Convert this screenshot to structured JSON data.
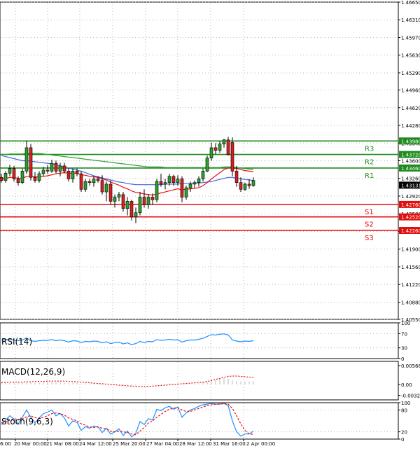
{
  "chart_data": [
    {
      "type": "candlestick",
      "panel": "main",
      "ylim": [
        1.4055,
        1.4665
      ],
      "y_ticks": [
        "1.46650",
        "1.46310",
        "1.45970",
        "1.45630",
        "1.45290",
        "1.44960",
        "1.44620",
        "1.44280",
        "1.43940",
        "1.43600",
        "1.43260",
        "1.42920",
        "1.42580",
        "1.42240",
        "1.41900",
        "1.41560",
        "1.41220",
        "1.40880",
        "1.40550"
      ],
      "current_price": {
        "value": 1.4313,
        "label": "1.43131"
      },
      "levels": [
        {
          "name": "R3",
          "value": 1.4398,
          "label": "1.43980",
          "kind": "resistance"
        },
        {
          "name": "R2",
          "value": 1.4372,
          "label": "1.43720",
          "kind": "resistance"
        },
        {
          "name": "R1",
          "value": 1.4346,
          "label": "1.43460",
          "kind": "resistance"
        },
        {
          "name": "S1",
          "value": 1.4276,
          "label": "1.42760",
          "kind": "support"
        },
        {
          "name": "S2",
          "value": 1.4252,
          "label": "1.42520",
          "kind": "support"
        },
        {
          "name": "S3",
          "value": 1.4226,
          "label": "1.42260",
          "kind": "support"
        }
      ],
      "candles": [
        [
          1.4328,
          1.4335,
          1.4318,
          1.4322
        ],
        [
          1.4322,
          1.434,
          1.4318,
          1.4336
        ],
        [
          1.4336,
          1.4352,
          1.433,
          1.4345
        ],
        [
          1.4345,
          1.435,
          1.432,
          1.4325
        ],
        [
          1.4325,
          1.433,
          1.4312,
          1.4318
        ],
        [
          1.4318,
          1.4345,
          1.4315,
          1.434
        ],
        [
          1.434,
          1.4398,
          1.4335,
          1.4385
        ],
        [
          1.4385,
          1.4392,
          1.4322,
          1.4328
        ],
        [
          1.4328,
          1.4338,
          1.4318,
          1.4322
        ],
        [
          1.4322,
          1.434,
          1.4318,
          1.4335
        ],
        [
          1.4335,
          1.4348,
          1.433,
          1.4342
        ],
        [
          1.4342,
          1.4352,
          1.4335,
          1.434
        ],
        [
          1.434,
          1.4362,
          1.4337,
          1.4355
        ],
        [
          1.4355,
          1.436,
          1.4336,
          1.434
        ],
        [
          1.434,
          1.4356,
          1.433,
          1.435
        ],
        [
          1.435,
          1.4356,
          1.4336,
          1.434
        ],
        [
          1.434,
          1.4346,
          1.432,
          1.4325
        ],
        [
          1.4325,
          1.4345,
          1.4318,
          1.434
        ],
        [
          1.434,
          1.4345,
          1.433,
          1.4335
        ],
        [
          1.4335,
          1.434,
          1.43,
          1.4305
        ],
        [
          1.4305,
          1.4325,
          1.43,
          1.432
        ],
        [
          1.432,
          1.4325,
          1.4312,
          1.4318
        ],
        [
          1.4318,
          1.433,
          1.431,
          1.4325
        ],
        [
          1.4325,
          1.433,
          1.4318,
          1.4322
        ],
        [
          1.4322,
          1.4332,
          1.4295,
          1.43
        ],
        [
          1.43,
          1.432,
          1.4282,
          1.4315
        ],
        [
          1.4315,
          1.4322,
          1.4275,
          1.4282
        ],
        [
          1.4282,
          1.4295,
          1.427,
          1.429
        ],
        [
          1.429,
          1.43,
          1.4282,
          1.4295
        ],
        [
          1.4295,
          1.43,
          1.4262,
          1.4268
        ],
        [
          1.4268,
          1.429,
          1.4255,
          1.4282
        ],
        [
          1.4282,
          1.4285,
          1.4245,
          1.4252
        ],
        [
          1.4252,
          1.427,
          1.424,
          1.426
        ],
        [
          1.426,
          1.43,
          1.4255,
          1.429
        ],
        [
          1.429,
          1.4305,
          1.427,
          1.4275
        ],
        [
          1.4275,
          1.4296,
          1.4268,
          1.429
        ],
        [
          1.429,
          1.4297,
          1.4275,
          1.4285
        ],
        [
          1.4285,
          1.4325,
          1.428,
          1.432
        ],
        [
          1.432,
          1.4335,
          1.431,
          1.4315
        ],
        [
          1.4315,
          1.4325,
          1.4305,
          1.4318
        ],
        [
          1.4318,
          1.4335,
          1.4312,
          1.433
        ],
        [
          1.433,
          1.4333,
          1.4312,
          1.4318
        ],
        [
          1.4318,
          1.4332,
          1.4312,
          1.4325
        ],
        [
          1.4325,
          1.433,
          1.428,
          1.429
        ],
        [
          1.429,
          1.4312,
          1.4285,
          1.4308
        ],
        [
          1.4308,
          1.432,
          1.43,
          1.4315
        ],
        [
          1.4315,
          1.4322,
          1.4308,
          1.4318
        ],
        [
          1.4318,
          1.433,
          1.431,
          1.4325
        ],
        [
          1.4325,
          1.4345,
          1.432,
          1.434
        ],
        [
          1.434,
          1.437,
          1.4338,
          1.4365
        ],
        [
          1.4365,
          1.4395,
          1.436,
          1.4385
        ],
        [
          1.4385,
          1.4394,
          1.4372,
          1.438
        ],
        [
          1.438,
          1.4398,
          1.4375,
          1.4392
        ],
        [
          1.4392,
          1.4402,
          1.4385,
          1.44
        ],
        [
          1.44,
          1.4406,
          1.437,
          1.4372
        ],
        [
          1.4395,
          1.4405,
          1.433,
          1.434
        ],
        [
          1.434,
          1.435,
          1.431,
          1.4318
        ],
        [
          1.4318,
          1.4328,
          1.43,
          1.4305
        ],
        [
          1.4305,
          1.4318,
          1.4302,
          1.4315
        ],
        [
          1.4315,
          1.4325,
          1.4306,
          1.4312
        ],
        [
          1.4312,
          1.4328,
          1.431,
          1.4322
        ]
      ],
      "x_labels": [
        "6:00",
        "20 Mar 00:00",
        "21 Mar 08:00",
        "24 Mar 12:00",
        "25 Mar 20:00",
        "27 Mar 04:00",
        "28 Mar 12:00",
        "31 Mar 16:00",
        "2 Apr 00:00"
      ],
      "moving_averages": [
        {
          "color": "#2ca02c",
          "values": [
            1.4372,
            1.4372,
            1.4373,
            1.4373,
            1.4373,
            1.4373,
            1.4374,
            1.4374,
            1.4374,
            1.4374,
            1.4373,
            1.4372,
            1.4371,
            1.437,
            1.4369,
            1.4368,
            1.4367,
            1.4366,
            1.4365,
            1.4364,
            1.4363,
            1.4362,
            1.4361,
            1.436,
            1.4359,
            1.4358,
            1.4357,
            1.4356,
            1.4355,
            1.4354,
            1.4353,
            1.4352,
            1.4351,
            1.435,
            1.4349,
            1.4348,
            1.4348,
            1.4348,
            1.4348,
            1.4347,
            1.4347,
            1.4347,
            1.4347,
            1.4347,
            1.4347,
            1.4347,
            1.4347,
            1.4347,
            1.4347,
            1.4347,
            1.4347,
            1.4347,
            1.4347,
            1.4348,
            1.4348,
            1.4348,
            1.4347,
            1.4346,
            1.4345,
            1.4344,
            1.4343
          ]
        },
        {
          "color": "#4169e1",
          "values": [
            1.437,
            1.4368,
            1.4366,
            1.4364,
            1.4362,
            1.436,
            1.436,
            1.4359,
            1.4358,
            1.4357,
            1.4356,
            1.4355,
            1.4354,
            1.4352,
            1.435,
            1.4348,
            1.4346,
            1.4344,
            1.4342,
            1.434,
            1.4337,
            1.4334,
            1.4331,
            1.4329,
            1.4327,
            1.4325,
            1.4323,
            1.4321,
            1.4319,
            1.4318,
            1.4316,
            1.4315,
            1.4314,
            1.4314,
            1.4314,
            1.4314,
            1.4314,
            1.4314,
            1.4314,
            1.4315,
            1.4315,
            1.4315,
            1.4315,
            1.4316,
            1.4316,
            1.4316,
            1.4317,
            1.4317,
            1.4318,
            1.4319,
            1.432,
            1.4322,
            1.4324,
            1.4326,
            1.4328,
            1.4328,
            1.4326,
            1.4325,
            1.4324,
            1.4323,
            1.4322
          ]
        },
        {
          "color": "#e81010",
          "values": [
            1.4325,
            1.4326,
            1.4328,
            1.4328,
            1.4326,
            1.4326,
            1.433,
            1.433,
            1.4329,
            1.4329,
            1.433,
            1.4331,
            1.4333,
            1.4335,
            1.4336,
            1.4337,
            1.4336,
            1.4336,
            1.4336,
            1.4333,
            1.4332,
            1.433,
            1.4329,
            1.4328,
            1.4325,
            1.4323,
            1.4319,
            1.4316,
            1.4313,
            1.4309,
            1.4306,
            1.4302,
            1.4299,
            1.4298,
            1.4296,
            1.4295,
            1.4294,
            1.4296,
            1.4298,
            1.43,
            1.4302,
            1.4304,
            1.4306,
            1.4304,
            1.4305,
            1.4306,
            1.4307,
            1.4308,
            1.4312,
            1.4318,
            1.4325,
            1.4331,
            1.4337,
            1.4343,
            1.4346,
            1.4346,
            1.4345,
            1.4343,
            1.4341,
            1.434,
            1.4339
          ]
        }
      ]
    },
    {
      "type": "line",
      "panel": "rsi",
      "title": "RSI(14)",
      "ylim": [
        0,
        100
      ],
      "y_ticks": [
        "100",
        "70",
        "30",
        "0"
      ],
      "series": [
        {
          "color": "#1e90ff",
          "values": [
            52,
            53,
            54,
            52,
            50,
            52,
            58,
            50,
            48,
            50,
            51,
            51,
            53,
            50,
            52,
            50,
            46,
            50,
            49,
            45,
            48,
            47,
            49,
            48,
            44,
            47,
            42,
            45,
            46,
            41,
            44,
            39,
            42,
            48,
            45,
            48,
            47,
            53,
            51,
            52,
            54,
            52,
            53,
            46,
            50,
            52,
            52,
            54,
            57,
            62,
            67,
            66,
            68,
            69,
            66,
            52,
            49,
            47,
            49,
            48,
            50
          ]
        }
      ]
    },
    {
      "type": "line",
      "panel": "macd",
      "title": "MACD(12,26,9)",
      "ylim": [
        -0.0046,
        0.0069
      ],
      "y_ticks": [
        "0.005664",
        "0.00",
        "-0.00326"
      ],
      "series": [
        {
          "color": "#e81010",
          "values": [
            0.0006,
            0.0006,
            0.0007,
            0.0007,
            0.0007,
            0.0007,
            0.0008,
            0.0008,
            0.0009,
            0.0009,
            0.0009,
            0.001,
            0.001,
            0.001,
            0.001,
            0.001,
            0.0009,
            0.0009,
            0.0008,
            0.0007,
            0.0006,
            0.0005,
            0.0004,
            0.0003,
            0.0002,
            0.0001,
            0.0,
            -0.0001,
            -0.0002,
            -0.0003,
            -0.0004,
            -0.0005,
            -0.0006,
            -0.0006,
            -0.0006,
            -0.0006,
            -0.0005,
            -0.0004,
            -0.0003,
            -0.0002,
            -0.0001,
            0.0,
            0.0001,
            0.0002,
            0.0003,
            0.0004,
            0.0005,
            0.0006,
            0.0007,
            0.0009,
            0.0012,
            0.0015,
            0.0018,
            0.0021,
            0.0024,
            0.0025,
            0.0025,
            0.0024,
            0.0023,
            0.0022,
            0.0021
          ]
        }
      ],
      "histogram_color": "#b8b8b8",
      "histogram": [
        0.0005,
        0.0006,
        0.0007,
        0.0006,
        0.0005,
        0.0007,
        0.0009,
        0.0006,
        0.0005,
        0.0006,
        0.0006,
        0.0007,
        0.0008,
        0.0006,
        0.0007,
        0.0006,
        0.0004,
        0.0005,
        0.0005,
        0.0002,
        0.0003,
        0.0003,
        0.0004,
        0.0003,
        0.0001,
        0.0001,
        -0.0002,
        -0.0001,
        0.0,
        -0.0003,
        -0.0002,
        -0.0005,
        -0.0004,
        -0.0001,
        -0.0002,
        -0.0001,
        -0.0001,
        0.0002,
        0.0001,
        0.0002,
        0.0003,
        0.0002,
        0.0003,
        0.0,
        0.0001,
        0.0002,
        0.0003,
        0.0004,
        0.0006,
        0.0009,
        0.0012,
        0.0014,
        0.0016,
        0.0018,
        0.0017,
        0.0012,
        0.001,
        0.0009,
        0.0009,
        0.0009,
        0.001
      ]
    },
    {
      "type": "line",
      "panel": "stoch",
      "title": "Stoch(9,6,3)",
      "ylim": [
        0,
        100
      ],
      "y_ticks": [
        "100",
        "80",
        "20",
        "0"
      ],
      "series": [
        {
          "color": "#1e90ff",
          "values": [
            40,
            52,
            64,
            55,
            42,
            60,
            80,
            60,
            45,
            58,
            70,
            74,
            80,
            64,
            70,
            58,
            36,
            50,
            46,
            24,
            34,
            30,
            36,
            34,
            18,
            30,
            14,
            20,
            28,
            10,
            22,
            6,
            16,
            48,
            40,
            56,
            52,
            82,
            78,
            86,
            90,
            82,
            88,
            60,
            72,
            80,
            84,
            90,
            94,
            96,
            98,
            96,
            96,
            98,
            92,
            50,
            20,
            8,
            14,
            14,
            22
          ]
        },
        {
          "color": "#e81010",
          "values": [
            45,
            47,
            52,
            56,
            54,
            55,
            62,
            64,
            59,
            57,
            60,
            64,
            70,
            72,
            70,
            66,
            58,
            54,
            50,
            42,
            38,
            33,
            32,
            33,
            30,
            28,
            22,
            20,
            22,
            20,
            18,
            14,
            12,
            22,
            32,
            44,
            50,
            60,
            68,
            76,
            82,
            85,
            86,
            80,
            76,
            76,
            80,
            84,
            88,
            92,
            94,
            96,
            97,
            97,
            96,
            84,
            64,
            42,
            24,
            14,
            13
          ]
        }
      ]
    }
  ]
}
